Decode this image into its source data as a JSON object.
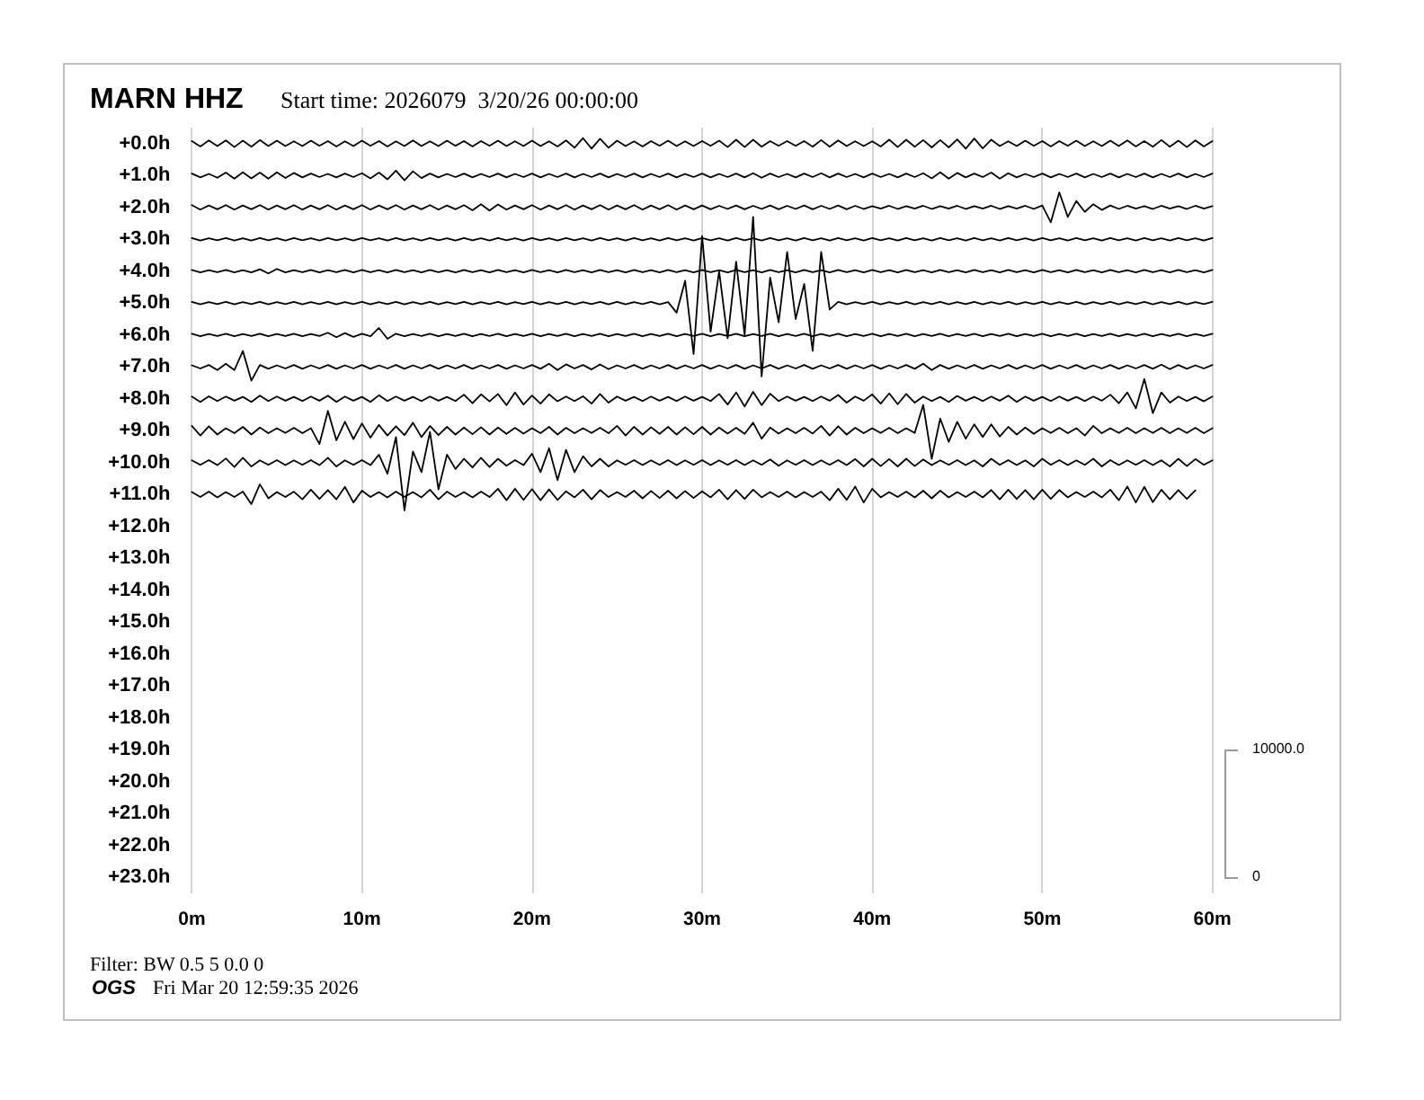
{
  "chart_data": {
    "type": "line",
    "title": "MARN HHZ",
    "subtitle": "Start time: 2026079  3/20/26 00:00:00",
    "annotations": [
      "Filter: BW 0.5 5 0.0 0",
      "OGS",
      "Fri Mar 20 12:59:35 2026",
      "10000.0",
      "0"
    ],
    "x": [
      0,
      0.5,
      1,
      1.5,
      2,
      2.5,
      3,
      3.5,
      4,
      4.5,
      5,
      5.5,
      6,
      6.5,
      7,
      7.5,
      8,
      8.5,
      9,
      9.5,
      10,
      10.5,
      11,
      11.5,
      12,
      12.5,
      13,
      13.5,
      14,
      14.5,
      15,
      15.5,
      16,
      16.5,
      17,
      17.5,
      18,
      18.5,
      19,
      19.5,
      20,
      20.5,
      21,
      21.5,
      22,
      22.5,
      23,
      23.5,
      24,
      24.5,
      25,
      25.5,
      26,
      26.5,
      27,
      27.5,
      28,
      28.5,
      29,
      29.5,
      30,
      30.5,
      31,
      31.5,
      32,
      32.5,
      33,
      33.5,
      34,
      34.5,
      35,
      35.5,
      36,
      36.5,
      37,
      37.5,
      38,
      38.5,
      39,
      39.5,
      40,
      40.5,
      41,
      41.5,
      42,
      42.5,
      43,
      43.5,
      44,
      44.5,
      45,
      45.5,
      46,
      46.5,
      47,
      47.5,
      48,
      48.5,
      49,
      49.5,
      50,
      50.5,
      51,
      51.5,
      52,
      52.5,
      53,
      53.5,
      54,
      54.5,
      55,
      55.5,
      56,
      56.5,
      57,
      57.5,
      58,
      58.5,
      59,
      59.5,
      60
    ],
    "series": [
      {
        "color": "#000000",
        "values": [
          -0.08,
          0.09,
          -0.1,
          0.08,
          -0.1,
          0.11,
          -0.09,
          0.1,
          -0.11,
          0.08,
          -0.09,
          0.08,
          -0.07,
          0.08,
          -0.09,
          0.07,
          -0.08,
          0.09,
          -0.07,
          0.08,
          -0.09,
          0.07,
          -0.08,
          0.09,
          -0.07,
          0.08,
          -0.1,
          0.08,
          -0.07,
          0.08,
          -0.09,
          0.07,
          -0.08,
          0.09,
          -0.08,
          0.07,
          -0.09,
          0.08,
          -0.07,
          0.08,
          -0.09,
          0.08,
          -0.07,
          0.09,
          -0.1,
          0.13,
          -0.17,
          0.16,
          -0.15,
          0.13,
          -0.09,
          0.08,
          -0.07,
          0.09,
          -0.08,
          0.07,
          -0.09,
          0.08,
          -0.07,
          0.08,
          -0.08,
          0.07,
          -0.09,
          0.11,
          -0.12,
          0.11,
          -0.12,
          0.1,
          -0.08,
          0.07,
          -0.08,
          0.07,
          -0.08,
          0.1,
          -0.11,
          0.1,
          -0.1,
          0.08,
          -0.07,
          0.08,
          -0.07,
          0.09,
          -0.12,
          0.11,
          -0.12,
          0.1,
          -0.11,
          0.12,
          -0.11,
          0.12,
          -0.13,
          0.16,
          -0.16,
          0.15,
          -0.12,
          0.08,
          -0.07,
          0.08,
          -0.09,
          0.07,
          -0.08,
          0.09,
          -0.08,
          0.07,
          -0.09,
          0.08,
          -0.07,
          0.08,
          -0.09,
          0.08,
          -0.1,
          0.09,
          -0.08,
          0.1,
          -0.11,
          0.1,
          -0.09,
          0.11,
          -0.1,
          0.09,
          -0.08
        ]
      },
      {
        "color": "#000000",
        "values": [
          0.94,
          1.06,
          0.95,
          1.07,
          0.91,
          1.1,
          0.9,
          1.09,
          0.91,
          1.1,
          0.9,
          1.08,
          0.92,
          1.06,
          0.94,
          1.05,
          0.95,
          1.06,
          0.94,
          1.05,
          0.93,
          1.09,
          0.91,
          1.12,
          0.85,
          1.15,
          0.87,
          1.08,
          0.94,
          1.06,
          0.95,
          1.05,
          0.94,
          1.06,
          0.95,
          1.05,
          0.94,
          1.06,
          0.95,
          1.05,
          0.94,
          1.06,
          0.95,
          1.05,
          0.94,
          1.06,
          0.95,
          1.05,
          0.94,
          1.06,
          0.95,
          1.05,
          0.94,
          1.06,
          0.95,
          1.05,
          0.94,
          1.06,
          0.95,
          1.05,
          0.94,
          1.06,
          0.95,
          1.05,
          0.94,
          1.06,
          0.93,
          1.07,
          0.94,
          1.05,
          0.95,
          1.06,
          0.94,
          1.05,
          0.93,
          1.06,
          0.94,
          1.05,
          0.95,
          1.06,
          0.94,
          1.05,
          0.95,
          1.06,
          0.94,
          1.05,
          0.93,
          1.09,
          0.9,
          1.1,
          0.92,
          1.06,
          0.94,
          1.05,
          0.91,
          1.1,
          0.93,
          1.06,
          0.95,
          1.05,
          0.94,
          1.06,
          0.95,
          1.05,
          0.94,
          1.06,
          0.95,
          1.05,
          0.94,
          1.06,
          0.95,
          1.05,
          0.94,
          1.06,
          0.95,
          1.05,
          0.94,
          1.06,
          0.95,
          1.05,
          0.94
        ]
      },
      {
        "color": "#000000",
        "values": [
          1.93,
          2.07,
          1.94,
          2.06,
          1.93,
          2.07,
          1.94,
          2.06,
          1.93,
          2.07,
          1.94,
          2.06,
          1.93,
          2.07,
          1.94,
          2.06,
          1.93,
          2.07,
          1.94,
          2.06,
          1.93,
          2.07,
          1.94,
          2.06,
          1.93,
          2.07,
          1.94,
          2.06,
          1.93,
          2.07,
          1.94,
          2.06,
          1.93,
          2.09,
          1.9,
          2.1,
          1.91,
          2.07,
          1.94,
          2.06,
          1.93,
          2.07,
          1.94,
          2.06,
          1.93,
          2.07,
          1.94,
          2.06,
          1.93,
          2.07,
          1.94,
          2.06,
          1.93,
          2.07,
          1.94,
          2.06,
          1.93,
          2.07,
          1.94,
          2.06,
          1.94,
          2.06,
          1.95,
          2.05,
          1.94,
          2.06,
          1.95,
          2.05,
          1.94,
          2.06,
          1.95,
          2.05,
          1.94,
          2.06,
          1.95,
          2.05,
          1.94,
          2.06,
          1.95,
          2.05,
          1.96,
          2.04,
          1.95,
          2.05,
          1.96,
          2.04,
          1.95,
          2.05,
          1.96,
          2.04,
          1.95,
          2.05,
          1.96,
          2.04,
          1.95,
          2.05,
          1.96,
          2.04,
          1.95,
          2.05,
          1.94,
          2.47,
          1.53,
          2.3,
          1.8,
          2.14,
          1.9,
          2.08,
          1.94,
          2.05,
          1.95,
          2.04,
          1.96,
          2.05,
          1.95,
          2.04,
          1.96,
          2.05,
          1.95,
          2.04,
          1.96
        ]
      },
      {
        "color": "#000000",
        "values": [
          2.96,
          3.04,
          2.97,
          3.03,
          2.96,
          3.04,
          2.97,
          3.04,
          2.96,
          3.03,
          2.97,
          3.04,
          2.96,
          3.03,
          2.97,
          3.04,
          2.96,
          3.03,
          2.97,
          3.04,
          2.96,
          3.03,
          2.97,
          3.04,
          2.96,
          3.03,
          2.97,
          3.04,
          2.96,
          3.03,
          2.97,
          3.04,
          2.96,
          3.03,
          2.97,
          3.04,
          2.96,
          3.03,
          2.97,
          3.04,
          2.96,
          3.03,
          2.97,
          3.04,
          2.96,
          3.03,
          2.97,
          3.04,
          2.96,
          3.03,
          2.97,
          3.04,
          2.96,
          3.03,
          2.97,
          3.04,
          2.96,
          3.03,
          2.97,
          3.04,
          2.96,
          3.03,
          2.97,
          3.04,
          2.96,
          3.03,
          2.97,
          3.04,
          2.96,
          3.03,
          2.97,
          3.04,
          2.96,
          3.03,
          2.97,
          3.04,
          2.96,
          3.03,
          2.97,
          3.04,
          2.96,
          3.03,
          2.97,
          3.04,
          2.96,
          3.03,
          2.97,
          3.04,
          2.96,
          3.03,
          2.97,
          3.04,
          2.96,
          3.03,
          2.97,
          3.04,
          2.96,
          3.03,
          2.97,
          3.04,
          2.96,
          3.03,
          2.97,
          3.04,
          2.96,
          3.03,
          2.97,
          3.04,
          2.96,
          3.03,
          2.97,
          3.04,
          2.96,
          3.03,
          2.97,
          3.04,
          2.96,
          3.03,
          2.97,
          3.04,
          2.96
        ]
      },
      {
        "color": "#000000",
        "values": [
          3.96,
          4.04,
          3.97,
          4.03,
          3.96,
          4.04,
          3.97,
          4.04,
          3.94,
          4.07,
          3.93,
          4.04,
          3.97,
          4.03,
          3.96,
          4.04,
          3.97,
          4.03,
          3.96,
          4.04,
          3.96,
          4.03,
          3.97,
          4.04,
          3.96,
          4.03,
          3.97,
          4.04,
          3.96,
          4.03,
          3.97,
          4.04,
          3.96,
          4.03,
          3.97,
          4.04,
          3.96,
          4.03,
          3.97,
          4.04,
          3.96,
          4.03,
          3.97,
          4.04,
          3.96,
          4.03,
          3.97,
          4.04,
          3.96,
          4.03,
          3.97,
          4.04,
          3.96,
          4.03,
          3.97,
          4.04,
          3.96,
          4.03,
          3.97,
          4.04,
          3.96,
          4.03,
          3.97,
          4.04,
          3.96,
          4.03,
          3.97,
          4.04,
          3.96,
          4.03,
          3.97,
          4.04,
          3.96,
          4.03,
          3.97,
          4.04,
          3.96,
          4.03,
          3.97,
          4.04,
          3.96,
          4.03,
          3.97,
          4.04,
          3.96,
          4.03,
          3.97,
          4.04,
          3.96,
          4.03,
          3.97,
          4.04,
          3.96,
          4.03,
          3.97,
          4.04,
          3.96,
          4.03,
          3.97,
          4.04,
          3.96,
          4.03,
          3.97,
          4.04,
          3.96,
          4.03,
          3.97,
          4.04,
          3.96,
          4.03,
          3.97,
          4.04,
          3.96,
          4.03,
          3.97,
          4.04,
          3.96,
          4.03,
          3.97,
          4.04,
          3.96
        ]
      },
      {
        "color": "#000000",
        "values": [
          4.96,
          5.04,
          4.97,
          5.03,
          4.96,
          5.04,
          4.97,
          5.03,
          4.96,
          5.04,
          4.97,
          5.03,
          4.96,
          5.04,
          4.97,
          5.03,
          4.96,
          5.04,
          4.97,
          5.03,
          4.96,
          5.04,
          4.97,
          5.03,
          4.96,
          5.04,
          4.97,
          5.03,
          4.96,
          5.04,
          4.97,
          5.03,
          4.96,
          5.04,
          4.97,
          5.03,
          4.96,
          5.04,
          4.97,
          5.03,
          4.96,
          5.04,
          4.97,
          5.03,
          4.96,
          5.04,
          4.97,
          5.03,
          4.96,
          5.04,
          4.96,
          5.04,
          4.97,
          5.03,
          4.96,
          5.04,
          4.97,
          5.3,
          4.3,
          6.6,
          2.9,
          5.9,
          4.0,
          6.1,
          3.7,
          6.0,
          2.3,
          7.3,
          4.2,
          5.6,
          3.4,
          5.5,
          4.4,
          6.5,
          3.4,
          5.2,
          4.96,
          5.04,
          4.97,
          5.03,
          4.96,
          5.04,
          4.97,
          5.03,
          4.96,
          5.04,
          4.97,
          5.03,
          4.96,
          5.04,
          4.97,
          5.03,
          4.96,
          5.04,
          4.97,
          5.03,
          4.96,
          5.04,
          4.97,
          5.03,
          4.96,
          5.04,
          4.97,
          5.03,
          4.96,
          5.04,
          4.97,
          5.03,
          4.96,
          5.04,
          4.97,
          5.03,
          4.96,
          5.04,
          4.97,
          5.03,
          4.96,
          5.04,
          4.97,
          5.03,
          4.96
        ]
      },
      {
        "color": "#000000",
        "values": [
          5.96,
          6.04,
          5.97,
          6.03,
          5.96,
          6.04,
          5.97,
          6.03,
          5.96,
          6.04,
          5.97,
          6.03,
          5.96,
          6.04,
          5.97,
          6.03,
          5.93,
          6.07,
          5.94,
          6.06,
          5.96,
          6.04,
          5.78,
          6.12,
          5.96,
          6.04,
          5.97,
          6.03,
          5.96,
          6.04,
          5.97,
          6.03,
          5.96,
          6.04,
          5.97,
          6.03,
          5.96,
          6.04,
          5.97,
          6.03,
          5.96,
          6.04,
          5.97,
          6.03,
          5.96,
          6.04,
          5.97,
          6.03,
          5.96,
          6.04,
          5.97,
          6.03,
          5.96,
          6.04,
          5.97,
          6.03,
          5.96,
          6.04,
          5.97,
          6.03,
          5.96,
          6.04,
          5.97,
          6.03,
          5.96,
          6.04,
          5.97,
          6.03,
          5.96,
          6.04,
          5.97,
          6.03,
          5.96,
          6.04,
          5.97,
          6.03,
          5.96,
          6.04,
          5.97,
          6.03,
          5.96,
          6.04,
          5.97,
          6.03,
          5.96,
          6.04,
          5.97,
          6.03,
          5.96,
          6.04,
          5.97,
          6.03,
          5.96,
          6.04,
          5.97,
          6.03,
          5.96,
          6.04,
          5.97,
          6.03,
          5.96,
          6.04,
          5.97,
          6.03,
          5.96,
          6.04,
          5.97,
          6.03,
          5.96,
          6.04,
          5.97,
          6.03,
          5.96,
          6.04,
          5.97,
          6.03,
          5.96,
          6.04,
          5.97,
          6.03,
          5.96
        ]
      },
      {
        "color": "#000000",
        "values": [
          6.95,
          7.05,
          6.94,
          7.1,
          6.9,
          7.1,
          6.5,
          7.43,
          6.94,
          7.06,
          6.95,
          7.05,
          6.94,
          7.06,
          6.95,
          7.05,
          6.94,
          7.06,
          6.95,
          7.05,
          6.94,
          7.06,
          6.95,
          7.05,
          6.94,
          7.06,
          6.95,
          7.05,
          6.94,
          7.06,
          6.95,
          7.05,
          6.94,
          7.06,
          6.95,
          7.05,
          6.94,
          7.06,
          6.95,
          7.05,
          6.94,
          7.06,
          6.9,
          7.1,
          6.92,
          7.05,
          6.94,
          7.08,
          6.92,
          7.07,
          6.95,
          7.05,
          6.94,
          7.06,
          6.95,
          7.05,
          6.94,
          7.06,
          6.95,
          7.05,
          6.94,
          7.06,
          6.95,
          7.05,
          6.94,
          7.06,
          6.95,
          7.05,
          6.94,
          7.06,
          6.95,
          7.05,
          6.94,
          7.06,
          6.95,
          7.05,
          6.94,
          7.06,
          6.95,
          7.05,
          6.94,
          7.06,
          6.95,
          7.05,
          6.94,
          7.06,
          6.9,
          7.1,
          6.94,
          7.06,
          6.95,
          7.05,
          6.94,
          7.06,
          6.95,
          7.05,
          6.94,
          7.06,
          6.95,
          7.05,
          6.94,
          7.06,
          6.95,
          7.05,
          6.94,
          7.06,
          6.95,
          7.05,
          6.94,
          7.06,
          6.95,
          7.05,
          6.94,
          7.06,
          6.93,
          7.07,
          6.94,
          7.06,
          6.95,
          7.05,
          6.94
        ]
      },
      {
        "color": "#000000",
        "values": [
          7.93,
          8.1,
          7.92,
          8.07,
          7.93,
          8.06,
          7.94,
          8.1,
          7.9,
          8.07,
          7.93,
          8.06,
          7.94,
          8.07,
          7.93,
          8.06,
          7.9,
          8.1,
          7.93,
          8.06,
          7.94,
          8.1,
          7.89,
          8.07,
          7.93,
          8.06,
          7.94,
          8.07,
          7.93,
          8.06,
          7.94,
          8.07,
          7.87,
          8.14,
          7.86,
          8.08,
          7.85,
          8.2,
          7.8,
          8.18,
          7.9,
          8.15,
          7.86,
          8.08,
          7.93,
          8.07,
          7.92,
          8.15,
          7.85,
          8.12,
          7.93,
          8.06,
          7.94,
          8.07,
          7.93,
          8.06,
          7.94,
          8.07,
          7.93,
          8.06,
          7.94,
          8.07,
          7.85,
          8.18,
          7.8,
          8.24,
          7.78,
          8.2,
          7.84,
          8.07,
          7.93,
          8.06,
          7.94,
          8.07,
          7.93,
          8.06,
          7.88,
          8.12,
          7.93,
          8.06,
          7.86,
          8.15,
          7.83,
          8.17,
          7.85,
          8.12,
          7.93,
          8.07,
          7.94,
          8.1,
          7.91,
          8.06,
          7.94,
          8.07,
          7.93,
          8.06,
          7.9,
          8.1,
          7.93,
          8.06,
          7.94,
          8.07,
          7.93,
          8.06,
          7.94,
          8.07,
          7.93,
          8.06,
          7.87,
          8.14,
          7.8,
          8.3,
          7.38,
          8.45,
          7.8,
          8.12,
          7.93,
          8.07,
          7.94,
          8.08,
          7.93
        ]
      },
      {
        "color": "#000000",
        "values": [
          8.85,
          9.15,
          8.86,
          9.12,
          8.92,
          9.08,
          8.88,
          9.12,
          8.9,
          9.08,
          8.92,
          9.07,
          8.91,
          9.08,
          8.92,
          9.42,
          8.38,
          9.3,
          8.72,
          9.26,
          8.77,
          9.22,
          8.82,
          9.15,
          8.86,
          9.14,
          8.75,
          9.2,
          8.85,
          9.14,
          8.88,
          9.12,
          8.9,
          9.11,
          8.89,
          9.12,
          8.9,
          9.1,
          8.91,
          9.09,
          8.92,
          9.08,
          8.88,
          9.12,
          8.91,
          9.08,
          8.92,
          9.07,
          8.91,
          9.08,
          8.85,
          9.15,
          8.88,
          9.12,
          8.89,
          9.1,
          8.88,
          9.12,
          8.89,
          9.11,
          8.88,
          9.12,
          8.9,
          9.09,
          8.91,
          9.1,
          8.75,
          9.25,
          8.9,
          9.09,
          8.92,
          9.08,
          8.91,
          9.09,
          8.85,
          9.15,
          8.86,
          9.12,
          8.91,
          9.08,
          8.92,
          9.07,
          8.91,
          9.08,
          8.92,
          9.07,
          8.19,
          9.88,
          8.62,
          9.35,
          8.72,
          9.25,
          8.8,
          9.2,
          8.8,
          9.18,
          8.88,
          9.12,
          8.9,
          9.1,
          8.92,
          9.07,
          8.91,
          9.08,
          8.92,
          9.15,
          8.85,
          9.08,
          8.92,
          9.07,
          8.91,
          9.08,
          8.92,
          9.07,
          8.91,
          9.08,
          8.92,
          9.07,
          8.91,
          9.08,
          8.92
        ]
      },
      {
        "color": "#000000",
        "values": [
          9.93,
          10.07,
          9.92,
          10.08,
          9.87,
          10.14,
          9.85,
          10.12,
          9.93,
          10.07,
          9.92,
          10.08,
          9.93,
          10.07,
          9.92,
          10.08,
          9.85,
          10.12,
          9.93,
          10.07,
          9.92,
          10.08,
          9.75,
          10.35,
          9.2,
          11.5,
          9.65,
          10.3,
          9.04,
          10.84,
          9.75,
          10.2,
          9.88,
          10.15,
          9.85,
          10.14,
          9.88,
          10.1,
          9.92,
          10.08,
          9.72,
          10.3,
          9.55,
          10.55,
          9.6,
          10.3,
          9.8,
          10.12,
          9.88,
          10.12,
          9.93,
          10.07,
          9.92,
          10.08,
          9.93,
          10.07,
          9.92,
          10.08,
          9.93,
          10.07,
          9.92,
          10.08,
          9.93,
          10.07,
          9.92,
          10.08,
          9.93,
          10.07,
          9.9,
          10.1,
          9.93,
          10.07,
          9.92,
          10.08,
          9.93,
          10.07,
          9.92,
          10.08,
          9.89,
          10.12,
          9.88,
          10.11,
          9.89,
          10.12,
          9.88,
          10.11,
          9.9,
          10.08,
          9.93,
          10.07,
          9.92,
          10.08,
          9.93,
          10.12,
          9.88,
          10.07,
          9.92,
          10.08,
          9.93,
          10.12,
          9.88,
          10.07,
          9.92,
          10.08,
          9.93,
          10.07,
          9.88,
          10.12,
          9.92,
          10.08,
          9.93,
          10.07,
          9.92,
          10.08,
          9.93,
          10.12,
          9.88,
          10.11,
          9.89,
          10.07,
          9.93
        ]
      },
      {
        "color": "#000000",
        "values": [
          10.92,
          11.08,
          10.91,
          11.09,
          10.92,
          11.08,
          10.91,
          11.3,
          10.68,
          11.12,
          10.92,
          11.08,
          10.91,
          11.15,
          10.85,
          11.14,
          10.86,
          11.15,
          10.76,
          11.25,
          10.88,
          11.08,
          10.92,
          11.09,
          10.91,
          11.08,
          10.92,
          11.09,
          10.85,
          11.15,
          10.91,
          11.08,
          10.92,
          11.09,
          10.91,
          11.08,
          10.82,
          11.18,
          10.82,
          11.17,
          10.83,
          11.18,
          10.84,
          11.17,
          10.9,
          11.09,
          10.85,
          11.15,
          10.86,
          11.08,
          10.92,
          11.08,
          10.88,
          11.12,
          10.89,
          11.11,
          10.88,
          11.12,
          10.89,
          11.11,
          10.9,
          11.09,
          10.85,
          11.15,
          10.86,
          11.14,
          10.85,
          11.09,
          10.92,
          11.08,
          10.91,
          11.09,
          10.92,
          11.08,
          10.91,
          11.18,
          10.82,
          11.17,
          10.75,
          11.25,
          10.82,
          11.09,
          10.92,
          11.08,
          10.91,
          11.09,
          10.88,
          11.12,
          10.88,
          11.09,
          10.92,
          11.08,
          10.91,
          11.09,
          10.86,
          11.15,
          10.85,
          11.14,
          10.86,
          11.15,
          10.85,
          11.14,
          10.86,
          11.09,
          10.92,
          11.08,
          10.91,
          11.09,
          10.85,
          11.18,
          10.75,
          11.25,
          10.76,
          11.24,
          10.85,
          11.15,
          10.86,
          11.14,
          10.87,
          null,
          null
        ]
      }
    ],
    "xlim": [
      0,
      60
    ],
    "xticks": [
      {
        "value": 0,
        "label": "0m"
      },
      {
        "value": 10,
        "label": "10m"
      },
      {
        "value": 20,
        "label": "20m"
      },
      {
        "value": 30,
        "label": "30m"
      },
      {
        "value": 40,
        "label": "40m"
      },
      {
        "value": 50,
        "label": "50m"
      },
      {
        "value": 60,
        "label": "60m"
      }
    ],
    "ylim": [
      23.5,
      -0.5
    ],
    "yticks": [
      {
        "value": 0,
        "label": "+0.0h"
      },
      {
        "value": 1,
        "label": "+1.0h"
      },
      {
        "value": 2,
        "label": "+2.0h"
      },
      {
        "value": 3,
        "label": "+3.0h"
      },
      {
        "value": 4,
        "label": "+4.0h"
      },
      {
        "value": 5,
        "label": "+5.0h"
      },
      {
        "value": 6,
        "label": "+6.0h"
      },
      {
        "value": 7,
        "label": "+7.0h"
      },
      {
        "value": 8,
        "label": "+8.0h"
      },
      {
        "value": 9,
        "label": "+9.0h"
      },
      {
        "value": 10,
        "label": "+10.0h"
      },
      {
        "value": 11,
        "label": "+11.0h"
      },
      {
        "value": 12,
        "label": "+12.0h"
      },
      {
        "value": 13,
        "label": "+13.0h"
      },
      {
        "value": 14,
        "label": "+14.0h"
      },
      {
        "value": 15,
        "label": "+15.0h"
      },
      {
        "value": 16,
        "label": "+16.0h"
      },
      {
        "value": 17,
        "label": "+17.0h"
      },
      {
        "value": 18,
        "label": "+18.0h"
      },
      {
        "value": 19,
        "label": "+19.0h"
      },
      {
        "value": 20,
        "label": "+20.0h"
      },
      {
        "value": 21,
        "label": "+21.0h"
      },
      {
        "value": 22,
        "label": "+22.0h"
      },
      {
        "value": 23,
        "label": "+23.0h"
      }
    ],
    "grid": "x"
  }
}
